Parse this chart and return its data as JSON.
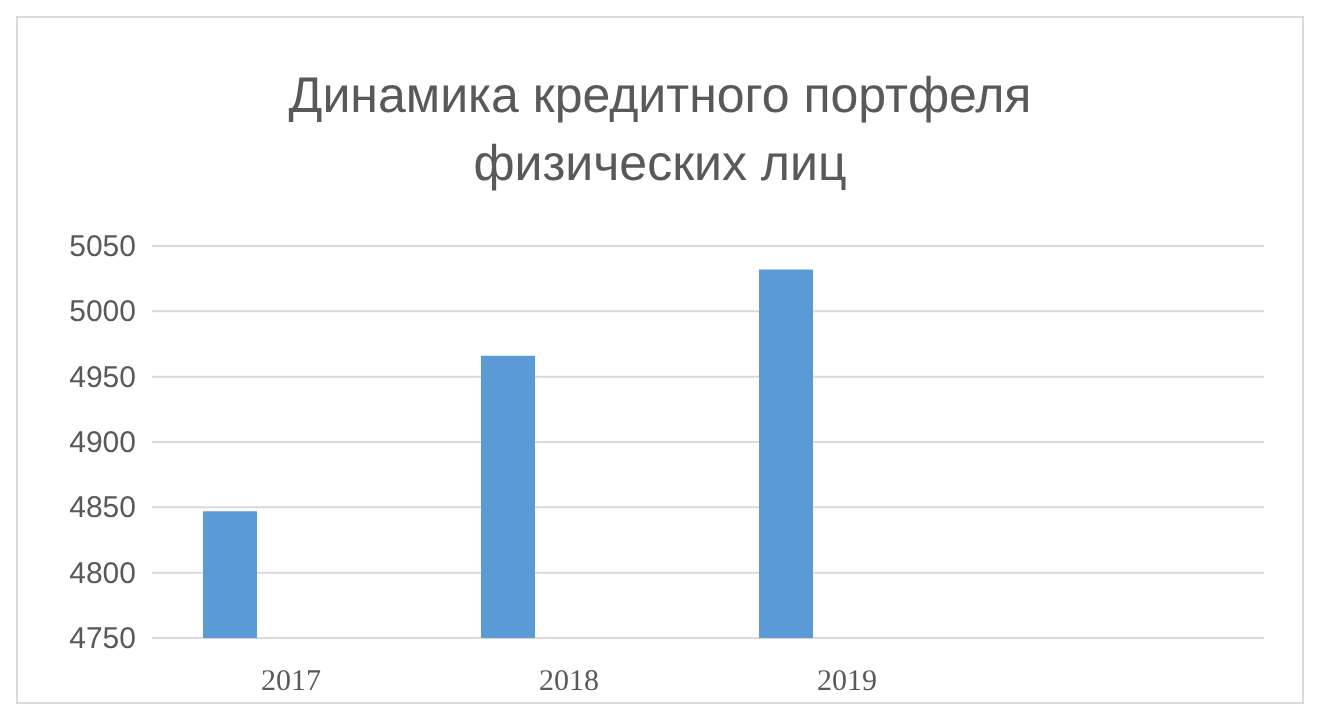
{
  "chart_data": {
    "type": "bar",
    "title": "Динамика кредитного портфеля физических лиц",
    "categories": [
      "2017",
      "2018",
      "2019",
      null
    ],
    "values": [
      4847,
      4966,
      5032,
      null
    ],
    "color": "#5b9bd5",
    "ylim": [
      4750,
      5050
    ],
    "yticks": [
      4750,
      4800,
      4850,
      4900,
      4950,
      5000,
      5050
    ],
    "grid": "y"
  }
}
